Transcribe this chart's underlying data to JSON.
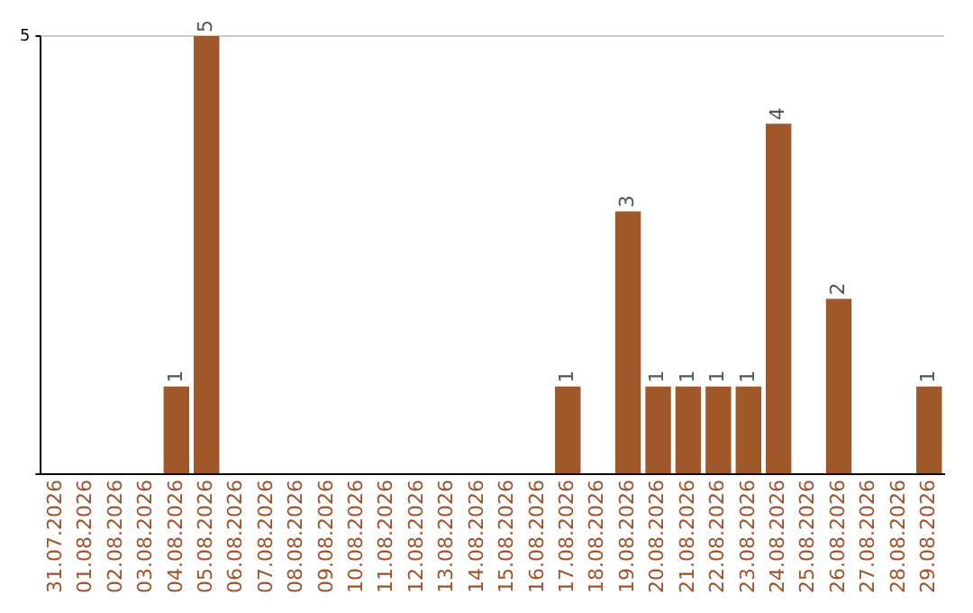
{
  "chart_data": {
    "type": "bar",
    "categories": [
      "31.07.2026",
      "01.08.2026",
      "02.08.2026",
      "03.08.2026",
      "04.08.2026",
      "05.08.2026",
      "06.08.2026",
      "07.08.2026",
      "08.08.2026",
      "09.08.2026",
      "10.08.2026",
      "11.08.2026",
      "12.08.2026",
      "13.08.2026",
      "14.08.2026",
      "15.08.2026",
      "16.08.2026",
      "17.08.2026",
      "18.08.2026",
      "19.08.2026",
      "20.08.2026",
      "21.08.2026",
      "22.08.2026",
      "23.08.2026",
      "24.08.2026",
      "25.08.2026",
      "26.08.2026",
      "27.08.2026",
      "28.08.2026",
      "29.08.2026"
    ],
    "values": [
      0,
      0,
      0,
      0,
      1,
      5,
      0,
      0,
      0,
      0,
      0,
      0,
      0,
      0,
      0,
      0,
      0,
      1,
      0,
      3,
      1,
      1,
      1,
      1,
      4,
      0,
      2,
      0,
      0,
      1
    ],
    "value_labels": [
      null,
      null,
      null,
      null,
      "1",
      "5",
      null,
      null,
      null,
      null,
      null,
      null,
      null,
      null,
      null,
      null,
      null,
      "1",
      null,
      "3",
      "1",
      "1",
      "1",
      "1",
      "4",
      null,
      "2",
      null,
      null,
      "1"
    ],
    "color": "#a0572a",
    "ylim": [
      0,
      5
    ],
    "yticks": [
      {
        "value": 0,
        "label": null
      },
      5
    ],
    "ref_lines": [
      {
        "axis": "y",
        "value": 5,
        "color": "#cccccc"
      }
    ],
    "legend": false
  }
}
